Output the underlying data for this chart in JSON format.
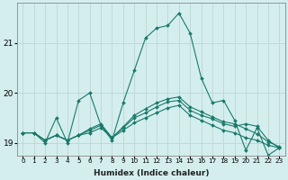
{
  "xlabel": "Humidex (Indice chaleur)",
  "bg_color": "#d4eeee",
  "grid_color": "#c0d8d8",
  "line_color": "#1a7a6a",
  "xlim": [
    -0.5,
    23.5
  ],
  "ylim": [
    18.75,
    21.8
  ],
  "yticks": [
    19,
    20,
    21
  ],
  "xtick_labels": [
    "0",
    "1",
    "2",
    "3",
    "4",
    "5",
    "6",
    "7",
    "8",
    "9",
    "10",
    "11",
    "12",
    "13",
    "14",
    "15",
    "16",
    "17",
    "18",
    "19",
    "20",
    "21",
    "22",
    "23"
  ],
  "lines": [
    [
      19.2,
      19.2,
      19.0,
      19.5,
      19.0,
      19.85,
      20.0,
      19.35,
      19.05,
      19.8,
      20.45,
      21.1,
      21.3,
      21.35,
      21.6,
      21.2,
      20.3,
      19.8,
      19.85,
      19.45,
      18.85,
      19.3,
      18.75,
      18.9
    ],
    [
      19.2,
      19.2,
      19.05,
      19.15,
      19.05,
      19.15,
      19.2,
      19.3,
      19.1,
      19.25,
      19.4,
      19.5,
      19.6,
      19.7,
      19.75,
      19.55,
      19.45,
      19.35,
      19.25,
      19.2,
      19.1,
      19.05,
      18.95,
      18.9
    ],
    [
      19.2,
      19.2,
      19.05,
      19.15,
      19.05,
      19.15,
      19.25,
      19.35,
      19.1,
      19.3,
      19.5,
      19.6,
      19.72,
      19.82,
      19.85,
      19.65,
      19.55,
      19.48,
      19.38,
      19.33,
      19.38,
      19.33,
      19.05,
      18.9
    ],
    [
      19.2,
      19.2,
      19.05,
      19.15,
      19.05,
      19.15,
      19.28,
      19.38,
      19.1,
      19.32,
      19.55,
      19.68,
      19.8,
      19.88,
      19.92,
      19.72,
      19.62,
      19.52,
      19.42,
      19.38,
      19.28,
      19.18,
      19.02,
      18.92
    ]
  ]
}
